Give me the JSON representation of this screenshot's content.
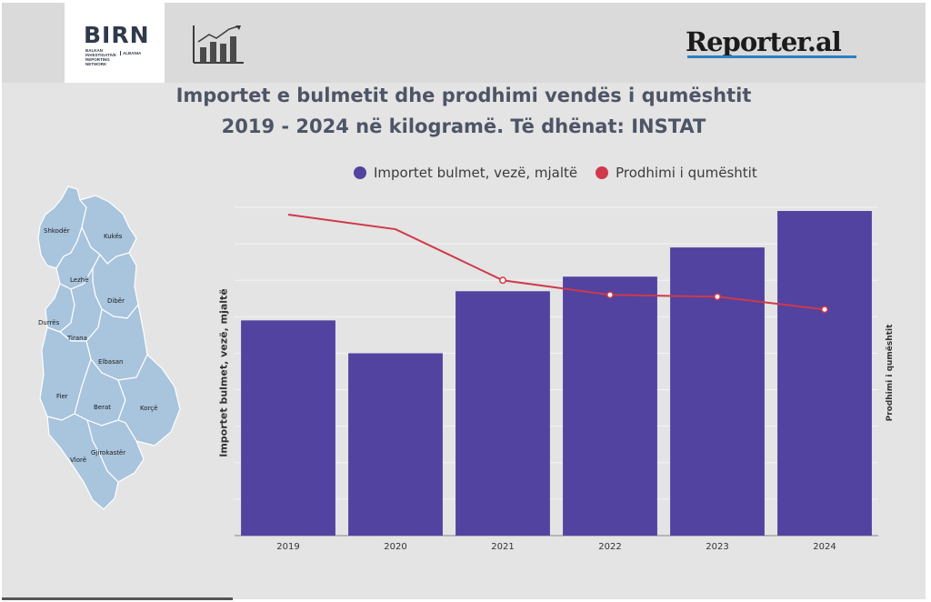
{
  "header": {
    "birn_logo": "BIRN",
    "birn_subtitle": "BALKAN INVESTIGATIVE REPORTING NETWORK",
    "birn_country": "ALBANIA",
    "reporter_logo": "Reporter.al"
  },
  "title_line1": "Importet e bulmetit dhe prodhimi vendës i qumështit",
  "title_line2": "2019 - 2024 në kilogramë. Të dhënat: INSTAT",
  "map": {
    "regions": [
      "Shkodër",
      "Kukës",
      "Lezhë",
      "Dibër",
      "Durrës",
      "Tirana",
      "Elbasan",
      "Fier",
      "Berat",
      "Korçë",
      "Gjirokastër",
      "Vlorë"
    ],
    "fill": "#a9c4dd"
  },
  "chart_data": {
    "type": "bar",
    "categories": [
      "2019",
      "2020",
      "2021",
      "2022",
      "2023",
      "2024"
    ],
    "ylabel": "Importet bulmet, vezë, mjaltë",
    "y2label": "Prodhimi i qumështit",
    "grid": true,
    "legend_position": "top",
    "series": [
      {
        "name": "Importet bulmet, vezë, mjaltë",
        "type": "bar",
        "axis": "left",
        "color": "#5243a0",
        "values": [
          59,
          50,
          67,
          71,
          79,
          89
        ]
      },
      {
        "name": "Prodhimi i qumështit",
        "type": "line",
        "axis": "right",
        "color": "#d0394a",
        "values": [
          88,
          84,
          70,
          66,
          65.5,
          62
        ]
      }
    ],
    "ylim": [
      0,
      90
    ],
    "y2lim": [
      0,
      90
    ]
  },
  "colors": {
    "bar": "#5243a0",
    "line": "#d0394a",
    "background": "#e4e4e4",
    "title": "#4d5566"
  }
}
